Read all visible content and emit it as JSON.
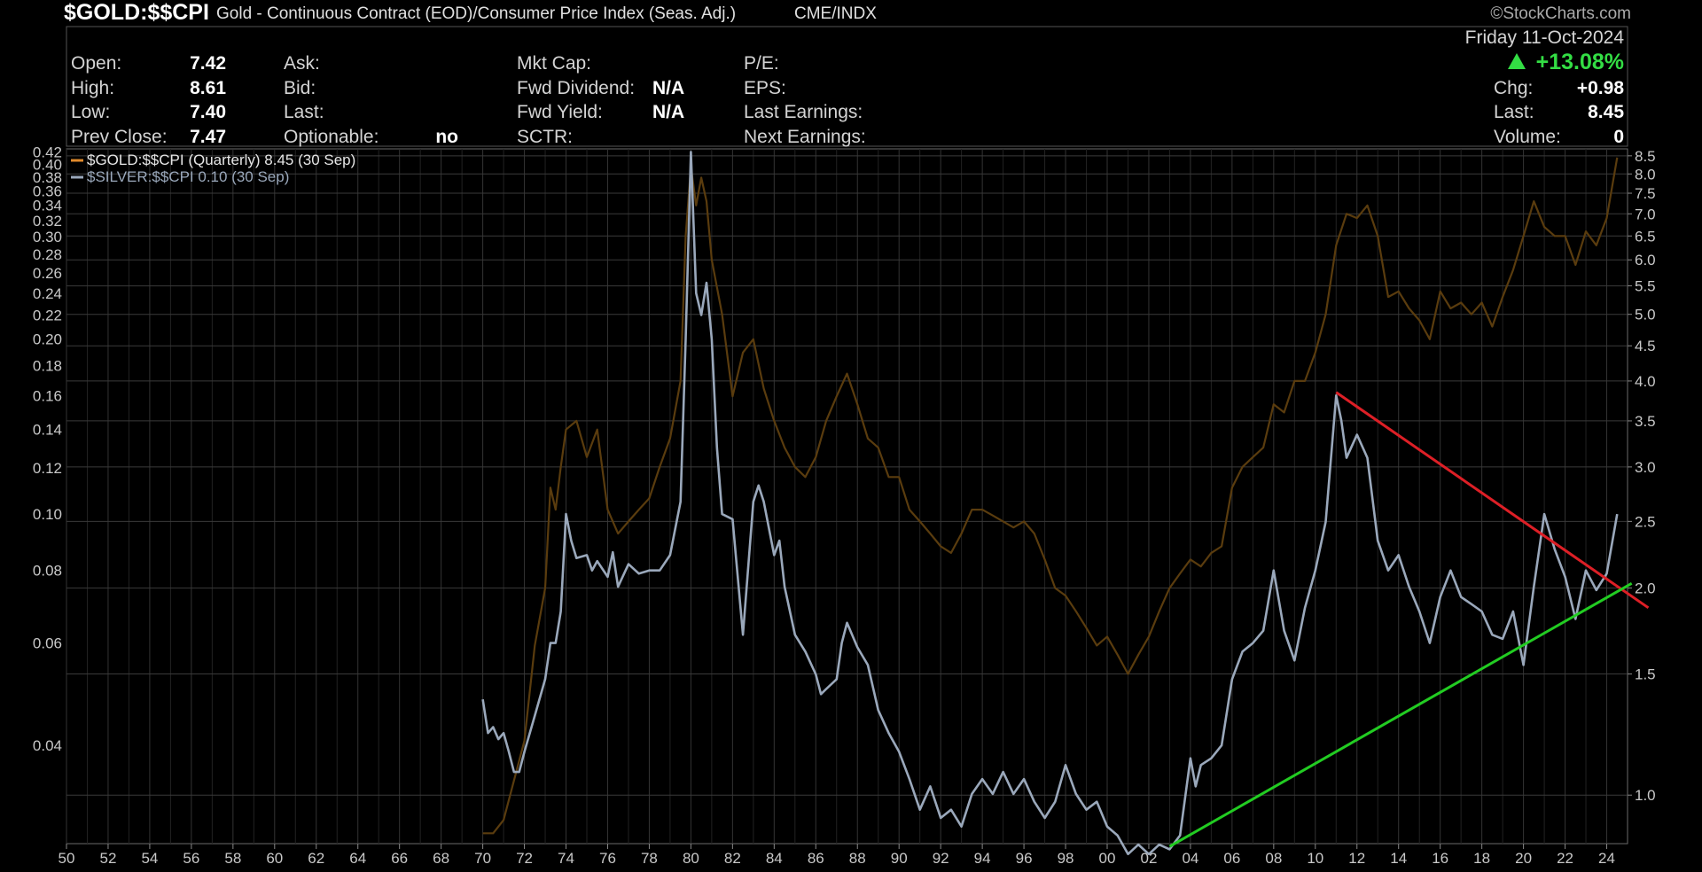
{
  "header": {
    "symbol": "$GOLD:$$CPI",
    "description": "Gold - Continuous Contract (EOD)/Consumer Price Index (Seas. Adj.)",
    "exchange": "CME/INDX",
    "watermark": "©StockCharts.com",
    "date": "Friday 11-Oct-2024",
    "change_pct": "+13.08%",
    "change_pct_color": "#33dd44"
  },
  "quote_panel": {
    "col1": [
      {
        "label": "Open:",
        "value": "7.42"
      },
      {
        "label": "High:",
        "value": "8.61"
      },
      {
        "label": "Low:",
        "value": "7.40"
      },
      {
        "label": "Prev Close:",
        "value": "7.47"
      }
    ],
    "col2": [
      {
        "label": "Ask:",
        "value": ""
      },
      {
        "label": "Bid:",
        "value": ""
      },
      {
        "label": "Last:",
        "value": ""
      },
      {
        "label": "Optionable:",
        "value": "no"
      }
    ],
    "col3": [
      {
        "label": "Mkt Cap:",
        "value": ""
      },
      {
        "label": "Fwd Dividend:",
        "value": "N/A"
      },
      {
        "label": "Fwd Yield:",
        "value": "N/A"
      },
      {
        "label": "SCTR:",
        "value": ""
      }
    ],
    "col4": [
      {
        "label": "P/E:",
        "value": ""
      },
      {
        "label": "EPS:",
        "value": ""
      },
      {
        "label": "Last Earnings:",
        "value": ""
      },
      {
        "label": "Next Earnings:",
        "value": ""
      }
    ],
    "col5": [
      {
        "label": "Chg:",
        "value": "+0.98"
      },
      {
        "label": "Last:",
        "value": "8.45"
      },
      {
        "label": "Volume:",
        "value": "0"
      }
    ]
  },
  "chart_data": {
    "type": "line",
    "log_scale": true,
    "grid": true,
    "legend_position": "top-left",
    "legend": [
      {
        "text": "$GOLD:$$CPI (Quarterly) 8.45 (30 Sep)",
        "color": "#e08a2c"
      },
      {
        "text": "$SILVER:$$CPI 0.10 (30 Sep)",
        "color": "#9aa8bb"
      }
    ],
    "x_ticks": [
      "50",
      "52",
      "54",
      "56",
      "58",
      "60",
      "62",
      "64",
      "66",
      "68",
      "70",
      "72",
      "74",
      "76",
      "78",
      "80",
      "82",
      "84",
      "86",
      "88",
      "90",
      "92",
      "94",
      "96",
      "98",
      "00",
      "02",
      "04",
      "06",
      "08",
      "10",
      "12",
      "14",
      "16",
      "18",
      "20",
      "22",
      "24"
    ],
    "x_range": [
      1950,
      2025.0
    ],
    "y_right_ticks": [
      1.0,
      1.5,
      2.0,
      2.5,
      3.0,
      3.5,
      4.0,
      4.5,
      5.0,
      5.5,
      6.0,
      6.5,
      7.0,
      7.5,
      8.0,
      8.5
    ],
    "y_right_range": [
      0.85,
      8.7
    ],
    "y_left_ticks": [
      0.04,
      0.06,
      0.08,
      0.1,
      0.12,
      0.14,
      0.16,
      0.18,
      0.2,
      0.22,
      0.24,
      0.26,
      0.28,
      0.3,
      0.32,
      0.34,
      0.36,
      0.38,
      0.4,
      0.42
    ],
    "y_left_range": [
      0.0271,
      0.425
    ],
    "series": [
      {
        "name": "$GOLD:$$CPI",
        "color": "#5a3c0e",
        "axis": "right",
        "points": [
          [
            1970.0,
            0.88
          ],
          [
            1970.5,
            0.88
          ],
          [
            1971.0,
            0.92
          ],
          [
            1971.5,
            1.05
          ],
          [
            1972.0,
            1.2
          ],
          [
            1972.5,
            1.65
          ],
          [
            1973.0,
            2.0
          ],
          [
            1973.25,
            2.8
          ],
          [
            1973.5,
            2.6
          ],
          [
            1973.75,
            3.0
          ],
          [
            1974.0,
            3.4
          ],
          [
            1974.5,
            3.5
          ],
          [
            1975.0,
            3.1
          ],
          [
            1975.5,
            3.4
          ],
          [
            1976.0,
            2.6
          ],
          [
            1976.5,
            2.4
          ],
          [
            1977.0,
            2.5
          ],
          [
            1977.5,
            2.6
          ],
          [
            1978.0,
            2.7
          ],
          [
            1978.5,
            3.0
          ],
          [
            1979.0,
            3.3
          ],
          [
            1979.5,
            4.0
          ],
          [
            1979.75,
            6.5
          ],
          [
            1980.0,
            8.2
          ],
          [
            1980.25,
            7.2
          ],
          [
            1980.5,
            7.9
          ],
          [
            1980.75,
            7.3
          ],
          [
            1981.0,
            6.0
          ],
          [
            1981.5,
            5.0
          ],
          [
            1982.0,
            3.8
          ],
          [
            1982.5,
            4.4
          ],
          [
            1983.0,
            4.6
          ],
          [
            1983.5,
            3.9
          ],
          [
            1984.0,
            3.5
          ],
          [
            1984.5,
            3.2
          ],
          [
            1985.0,
            3.0
          ],
          [
            1985.5,
            2.9
          ],
          [
            1986.0,
            3.1
          ],
          [
            1986.5,
            3.5
          ],
          [
            1987.0,
            3.8
          ],
          [
            1987.5,
            4.1
          ],
          [
            1988.0,
            3.7
          ],
          [
            1988.5,
            3.3
          ],
          [
            1989.0,
            3.2
          ],
          [
            1989.5,
            2.9
          ],
          [
            1990.0,
            2.9
          ],
          [
            1990.5,
            2.6
          ],
          [
            1991.0,
            2.5
          ],
          [
            1991.5,
            2.4
          ],
          [
            1992.0,
            2.3
          ],
          [
            1992.5,
            2.25
          ],
          [
            1993.0,
            2.4
          ],
          [
            1993.5,
            2.6
          ],
          [
            1994.0,
            2.6
          ],
          [
            1994.5,
            2.55
          ],
          [
            1995.0,
            2.5
          ],
          [
            1995.5,
            2.45
          ],
          [
            1996.0,
            2.5
          ],
          [
            1996.5,
            2.4
          ],
          [
            1997.0,
            2.2
          ],
          [
            1997.5,
            2.0
          ],
          [
            1998.0,
            1.95
          ],
          [
            1998.5,
            1.85
          ],
          [
            1999.0,
            1.75
          ],
          [
            1999.5,
            1.65
          ],
          [
            2000.0,
            1.7
          ],
          [
            2000.5,
            1.6
          ],
          [
            2001.0,
            1.5
          ],
          [
            2001.5,
            1.6
          ],
          [
            2002.0,
            1.7
          ],
          [
            2002.5,
            1.85
          ],
          [
            2003.0,
            2.0
          ],
          [
            2003.5,
            2.1
          ],
          [
            2004.0,
            2.2
          ],
          [
            2004.5,
            2.15
          ],
          [
            2005.0,
            2.25
          ],
          [
            2005.5,
            2.3
          ],
          [
            2006.0,
            2.8
          ],
          [
            2006.5,
            3.0
          ],
          [
            2007.0,
            3.1
          ],
          [
            2007.5,
            3.2
          ],
          [
            2008.0,
            3.7
          ],
          [
            2008.5,
            3.6
          ],
          [
            2009.0,
            4.0
          ],
          [
            2009.5,
            4.0
          ],
          [
            2010.0,
            4.4
          ],
          [
            2010.5,
            5.0
          ],
          [
            2011.0,
            6.3
          ],
          [
            2011.5,
            7.0
          ],
          [
            2012.0,
            6.9
          ],
          [
            2012.5,
            7.2
          ],
          [
            2013.0,
            6.5
          ],
          [
            2013.5,
            5.3
          ],
          [
            2014.0,
            5.4
          ],
          [
            2014.5,
            5.1
          ],
          [
            2015.0,
            4.9
          ],
          [
            2015.5,
            4.6
          ],
          [
            2016.0,
            5.4
          ],
          [
            2016.5,
            5.1
          ],
          [
            2017.0,
            5.2
          ],
          [
            2017.5,
            5.0
          ],
          [
            2018.0,
            5.2
          ],
          [
            2018.5,
            4.8
          ],
          [
            2019.0,
            5.3
          ],
          [
            2019.5,
            5.8
          ],
          [
            2020.0,
            6.5
          ],
          [
            2020.5,
            7.3
          ],
          [
            2021.0,
            6.7
          ],
          [
            2021.5,
            6.5
          ],
          [
            2022.0,
            6.5
          ],
          [
            2022.5,
            5.9
          ],
          [
            2023.0,
            6.6
          ],
          [
            2023.5,
            6.3
          ],
          [
            2024.0,
            6.9
          ],
          [
            2024.5,
            8.45
          ]
        ]
      },
      {
        "name": "$SILVER:$$CPI",
        "color": "#9aa8bb",
        "axis": "left",
        "points": [
          [
            1970.0,
            0.048
          ],
          [
            1970.25,
            0.042
          ],
          [
            1970.5,
            0.043
          ],
          [
            1970.75,
            0.041
          ],
          [
            1971.0,
            0.042
          ],
          [
            1971.25,
            0.039
          ],
          [
            1971.5,
            0.036
          ],
          [
            1971.75,
            0.036
          ],
          [
            1972.0,
            0.039
          ],
          [
            1972.5,
            0.045
          ],
          [
            1973.0,
            0.052
          ],
          [
            1973.25,
            0.06
          ],
          [
            1973.5,
            0.06
          ],
          [
            1973.75,
            0.068
          ],
          [
            1974.0,
            0.1
          ],
          [
            1974.25,
            0.09
          ],
          [
            1974.5,
            0.084
          ],
          [
            1975.0,
            0.085
          ],
          [
            1975.25,
            0.08
          ],
          [
            1975.5,
            0.083
          ],
          [
            1976.0,
            0.078
          ],
          [
            1976.25,
            0.086
          ],
          [
            1976.5,
            0.075
          ],
          [
            1977.0,
            0.082
          ],
          [
            1977.5,
            0.079
          ],
          [
            1978.0,
            0.08
          ],
          [
            1978.5,
            0.08
          ],
          [
            1979.0,
            0.085
          ],
          [
            1979.5,
            0.105
          ],
          [
            1979.75,
            0.2
          ],
          [
            1980.0,
            0.42
          ],
          [
            1980.25,
            0.24
          ],
          [
            1980.5,
            0.22
          ],
          [
            1980.75,
            0.25
          ],
          [
            1981.0,
            0.2
          ],
          [
            1981.25,
            0.13
          ],
          [
            1981.5,
            0.1
          ],
          [
            1982.0,
            0.098
          ],
          [
            1982.5,
            0.062
          ],
          [
            1983.0,
            0.105
          ],
          [
            1983.25,
            0.112
          ],
          [
            1983.5,
            0.105
          ],
          [
            1984.0,
            0.085
          ],
          [
            1984.25,
            0.09
          ],
          [
            1984.5,
            0.075
          ],
          [
            1985.0,
            0.062
          ],
          [
            1985.5,
            0.058
          ],
          [
            1986.0,
            0.053
          ],
          [
            1986.25,
            0.049
          ],
          [
            1986.5,
            0.05
          ],
          [
            1987.0,
            0.052
          ],
          [
            1987.25,
            0.06
          ],
          [
            1987.5,
            0.065
          ],
          [
            1988.0,
            0.059
          ],
          [
            1988.5,
            0.055
          ],
          [
            1989.0,
            0.046
          ],
          [
            1989.5,
            0.042
          ],
          [
            1990.0,
            0.039
          ],
          [
            1990.5,
            0.035
          ],
          [
            1991.0,
            0.031
          ],
          [
            1991.5,
            0.034
          ],
          [
            1992.0,
            0.03
          ],
          [
            1992.5,
            0.031
          ],
          [
            1993.0,
            0.029
          ],
          [
            1993.5,
            0.033
          ],
          [
            1994.0,
            0.035
          ],
          [
            1994.5,
            0.033
          ],
          [
            1995.0,
            0.036
          ],
          [
            1995.5,
            0.033
          ],
          [
            1996.0,
            0.035
          ],
          [
            1996.5,
            0.032
          ],
          [
            1997.0,
            0.03
          ],
          [
            1997.5,
            0.032
          ],
          [
            1998.0,
            0.037
          ],
          [
            1998.5,
            0.033
          ],
          [
            1999.0,
            0.031
          ],
          [
            1999.5,
            0.032
          ],
          [
            2000.0,
            0.029
          ],
          [
            2000.5,
            0.028
          ],
          [
            2001.0,
            0.026
          ],
          [
            2001.5,
            0.027
          ],
          [
            2002.0,
            0.026
          ],
          [
            2002.5,
            0.027
          ],
          [
            2003.0,
            0.0265
          ],
          [
            2003.5,
            0.028
          ],
          [
            2004.0,
            0.038
          ],
          [
            2004.25,
            0.034
          ],
          [
            2004.5,
            0.037
          ],
          [
            2005.0,
            0.038
          ],
          [
            2005.5,
            0.04
          ],
          [
            2006.0,
            0.052
          ],
          [
            2006.5,
            0.058
          ],
          [
            2007.0,
            0.06
          ],
          [
            2007.5,
            0.063
          ],
          [
            2008.0,
            0.08
          ],
          [
            2008.5,
            0.063
          ],
          [
            2009.0,
            0.056
          ],
          [
            2009.5,
            0.069
          ],
          [
            2010.0,
            0.08
          ],
          [
            2010.5,
            0.097
          ],
          [
            2011.0,
            0.16
          ],
          [
            2011.25,
            0.145
          ],
          [
            2011.5,
            0.125
          ],
          [
            2012.0,
            0.137
          ],
          [
            2012.5,
            0.125
          ],
          [
            2013.0,
            0.09
          ],
          [
            2013.5,
            0.08
          ],
          [
            2014.0,
            0.085
          ],
          [
            2014.5,
            0.075
          ],
          [
            2015.0,
            0.068
          ],
          [
            2015.5,
            0.06
          ],
          [
            2016.0,
            0.072
          ],
          [
            2016.5,
            0.08
          ],
          [
            2017.0,
            0.072
          ],
          [
            2017.5,
            0.07
          ],
          [
            2018.0,
            0.068
          ],
          [
            2018.5,
            0.062
          ],
          [
            2019.0,
            0.061
          ],
          [
            2019.5,
            0.068
          ],
          [
            2020.0,
            0.055
          ],
          [
            2020.5,
            0.075
          ],
          [
            2021.0,
            0.1
          ],
          [
            2021.5,
            0.087
          ],
          [
            2022.0,
            0.078
          ],
          [
            2022.5,
            0.066
          ],
          [
            2023.0,
            0.08
          ],
          [
            2023.5,
            0.074
          ],
          [
            2024.0,
            0.079
          ],
          [
            2024.5,
            0.1
          ]
        ]
      }
    ],
    "trendlines": [
      {
        "color": "#dd1f26",
        "from": [
          2011.0,
          0.162
        ],
        "to": [
          2026.0,
          0.069
        ]
      },
      {
        "color": "#22cc22",
        "from": [
          2003.0,
          0.0268
        ],
        "to": [
          2025.2,
          0.076
        ]
      }
    ]
  }
}
